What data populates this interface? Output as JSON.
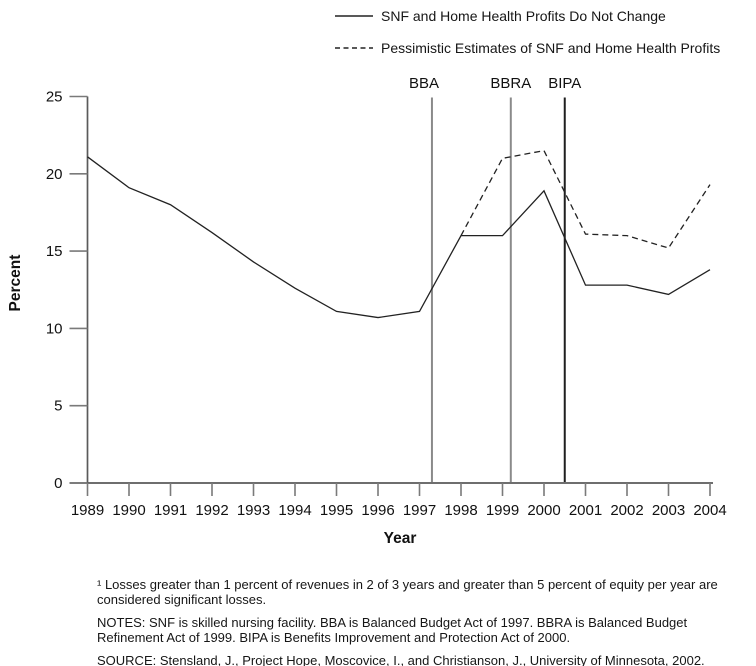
{
  "legend": {
    "items": [
      {
        "label": "SNF and Home Health Profits Do Not Change",
        "style": "solid"
      },
      {
        "label": "Pessimistic Estimates of SNF and Home Health Profits",
        "style": "dashed"
      }
    ]
  },
  "chart_data": {
    "type": "line",
    "title": "",
    "xlabel": "Year",
    "ylabel": "Percent",
    "ylim": [
      0,
      25
    ],
    "yticks": [
      0,
      5,
      10,
      15,
      20,
      25
    ],
    "xticks": [
      1989,
      1990,
      1991,
      1992,
      1993,
      1994,
      1995,
      1996,
      1997,
      1998,
      1999,
      2000,
      2001,
      2002,
      2003,
      2004
    ],
    "grid": false,
    "legend_position": "top",
    "series": [
      {
        "name": "SNF and Home Health Profits Do Not Change",
        "style": "solid",
        "color": "#222222",
        "x": [
          1989,
          1990,
          1991,
          1992,
          1993,
          1994,
          1995,
          1996,
          1997,
          1998,
          1999,
          2000,
          2001,
          2002,
          2003,
          2004
        ],
        "values": [
          21.1,
          19.1,
          18.0,
          16.2,
          14.3,
          12.6,
          11.1,
          10.7,
          11.1,
          16.0,
          16.0,
          18.9,
          12.8,
          12.8,
          12.2,
          13.8
        ]
      },
      {
        "name": "Pessimistic Estimates of SNF and Home Health Profits",
        "style": "dashed",
        "color": "#222222",
        "x": [
          1998,
          1999,
          2000,
          2001,
          2002,
          2003,
          2004
        ],
        "values": [
          16.0,
          21.0,
          21.5,
          16.1,
          16.0,
          15.2,
          19.3
        ]
      }
    ],
    "event_lines": [
      {
        "label": "BBA",
        "x": 1997.3,
        "color": "#8a8a8a"
      },
      {
        "label": "BBRA",
        "x": 1999.2,
        "color": "#8a8a8a"
      },
      {
        "label": "BIPA",
        "x": 2000.5,
        "color": "#1f1f1f"
      }
    ]
  },
  "footer": {
    "footnote": "¹ Losses greater than 1 percent  of revenues in 2 of 3 years and greater than 5 percent of equity per year are considered significant losses.",
    "notes": "NOTES: SNF is skilled nursing facility.  BBA is Balanced Budget Act of 1997. BBRA is Balanced Budget Refinement Act of 1999. BIPA is Benefits Improvement and Protection Act of 2000.",
    "source": "SOURCE: Stensland, J., Project Hope, Moscovice, I., and Christianson, J., University of Minnesota, 2002."
  }
}
